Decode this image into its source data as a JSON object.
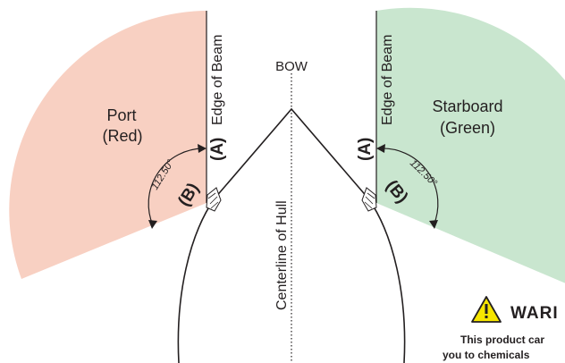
{
  "colors": {
    "port_sector": "#f8d0c2",
    "starboard_sector": "#c9e6cf",
    "line": "#231f20",
    "warning_yellow": "#f6e500"
  },
  "labels": {
    "bow": "BOW",
    "centerline": "Centerline of Hull",
    "port_edge": "Edge of Beam",
    "starboard_edge": "Edge of Beam",
    "port_name": "Port",
    "port_color": "(Red)",
    "starboard_name": "Starboard",
    "starboard_color": "(Green)",
    "port_tag_a": "(A)",
    "port_tag_b": "(B)",
    "starboard_tag_a": "(A)",
    "starboard_tag_b": "(B)",
    "port_angle": "112.50°",
    "starboard_angle": "112.50°"
  },
  "icons": {
    "warning": "warning-triangle-icon"
  },
  "warning": {
    "title": "WARI",
    "line1": "This product car",
    "line2": "you to chemicals"
  }
}
